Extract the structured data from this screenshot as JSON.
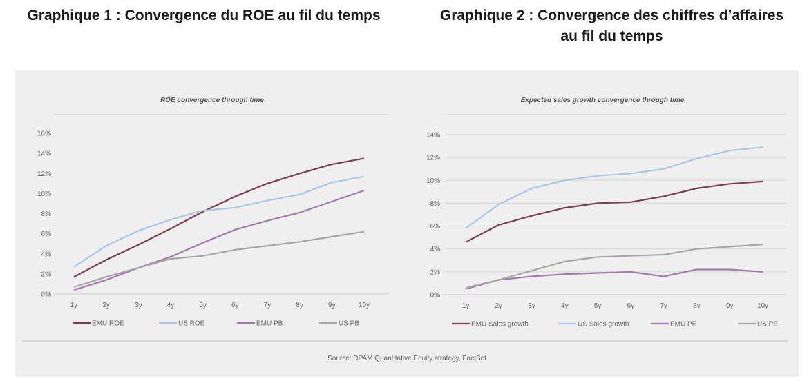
{
  "headings": {
    "chart1": "Graphique 1 : Convergence du ROE au fil du temps",
    "chart2_line1": "Graphique 2 : Convergence des chiffres d’affaires",
    "chart2_line2": "au fil du temps"
  },
  "source": "Source: DPAM Quantitative Equity strategy, FactSet",
  "chart_data": [
    {
      "type": "line",
      "title": "ROE convergence through time",
      "categories": [
        "1y",
        "2y",
        "3y",
        "4y",
        "5y",
        "6y",
        "7y",
        "8y",
        "9y",
        "10y"
      ],
      "ylim": [
        0,
        16
      ],
      "yticks": [
        0,
        2,
        4,
        6,
        8,
        10,
        12,
        14,
        16
      ],
      "tick_suffix": "%",
      "grid": "top line only",
      "legend_position": "bottom",
      "series": [
        {
          "name": "EMU ROE",
          "color": "#7b3f4c",
          "values": [
            1.7,
            3.4,
            4.9,
            6.5,
            8.2,
            9.7,
            11.0,
            12.0,
            12.9,
            13.5
          ]
        },
        {
          "name": "US ROE",
          "color": "#a9c5e8",
          "values": [
            2.7,
            4.8,
            6.3,
            7.4,
            8.3,
            8.6,
            9.3,
            9.9,
            11.1,
            11.7
          ]
        },
        {
          "name": "EMU PB",
          "color": "#a17ab1",
          "values": [
            0.4,
            1.4,
            2.6,
            3.7,
            5.1,
            6.4,
            7.3,
            8.1,
            9.2,
            10.3
          ]
        },
        {
          "name": "US PB",
          "color": "#a6a6a6",
          "values": [
            0.7,
            1.7,
            2.6,
            3.5,
            3.8,
            4.4,
            4.8,
            5.2,
            5.7,
            6.2
          ]
        }
      ]
    },
    {
      "type": "line",
      "title": "Expected sales growth convergence through time",
      "categories": [
        "1y",
        "2y",
        "3y",
        "4y",
        "5y",
        "6y",
        "7y",
        "8y",
        "9y",
        "10y"
      ],
      "ylim": [
        0,
        14
      ],
      "yticks": [
        0,
        2,
        4,
        6,
        8,
        10,
        12,
        14
      ],
      "tick_suffix": "%",
      "grid": "horizontal",
      "legend_position": "bottom",
      "series": [
        {
          "name": "EMU Sales growth",
          "color": "#7b3f4c",
          "values": [
            4.6,
            6.1,
            6.9,
            7.6,
            8.0,
            8.1,
            8.6,
            9.3,
            9.7,
            9.9
          ]
        },
        {
          "name": "US Sales growth",
          "color": "#a9c5e8",
          "values": [
            5.8,
            7.9,
            9.3,
            10.0,
            10.4,
            10.6,
            11.0,
            11.9,
            12.6,
            12.9
          ]
        },
        {
          "name": "EMU PE",
          "color": "#a17ab1",
          "values": [
            0.5,
            1.3,
            1.6,
            1.8,
            1.9,
            2.0,
            1.6,
            2.2,
            2.2,
            2.0
          ]
        },
        {
          "name": "US PE",
          "color": "#a6a6a6",
          "values": [
            0.6,
            1.3,
            2.1,
            2.9,
            3.3,
            3.4,
            3.5,
            4.0,
            4.2,
            4.4
          ]
        }
      ]
    }
  ]
}
